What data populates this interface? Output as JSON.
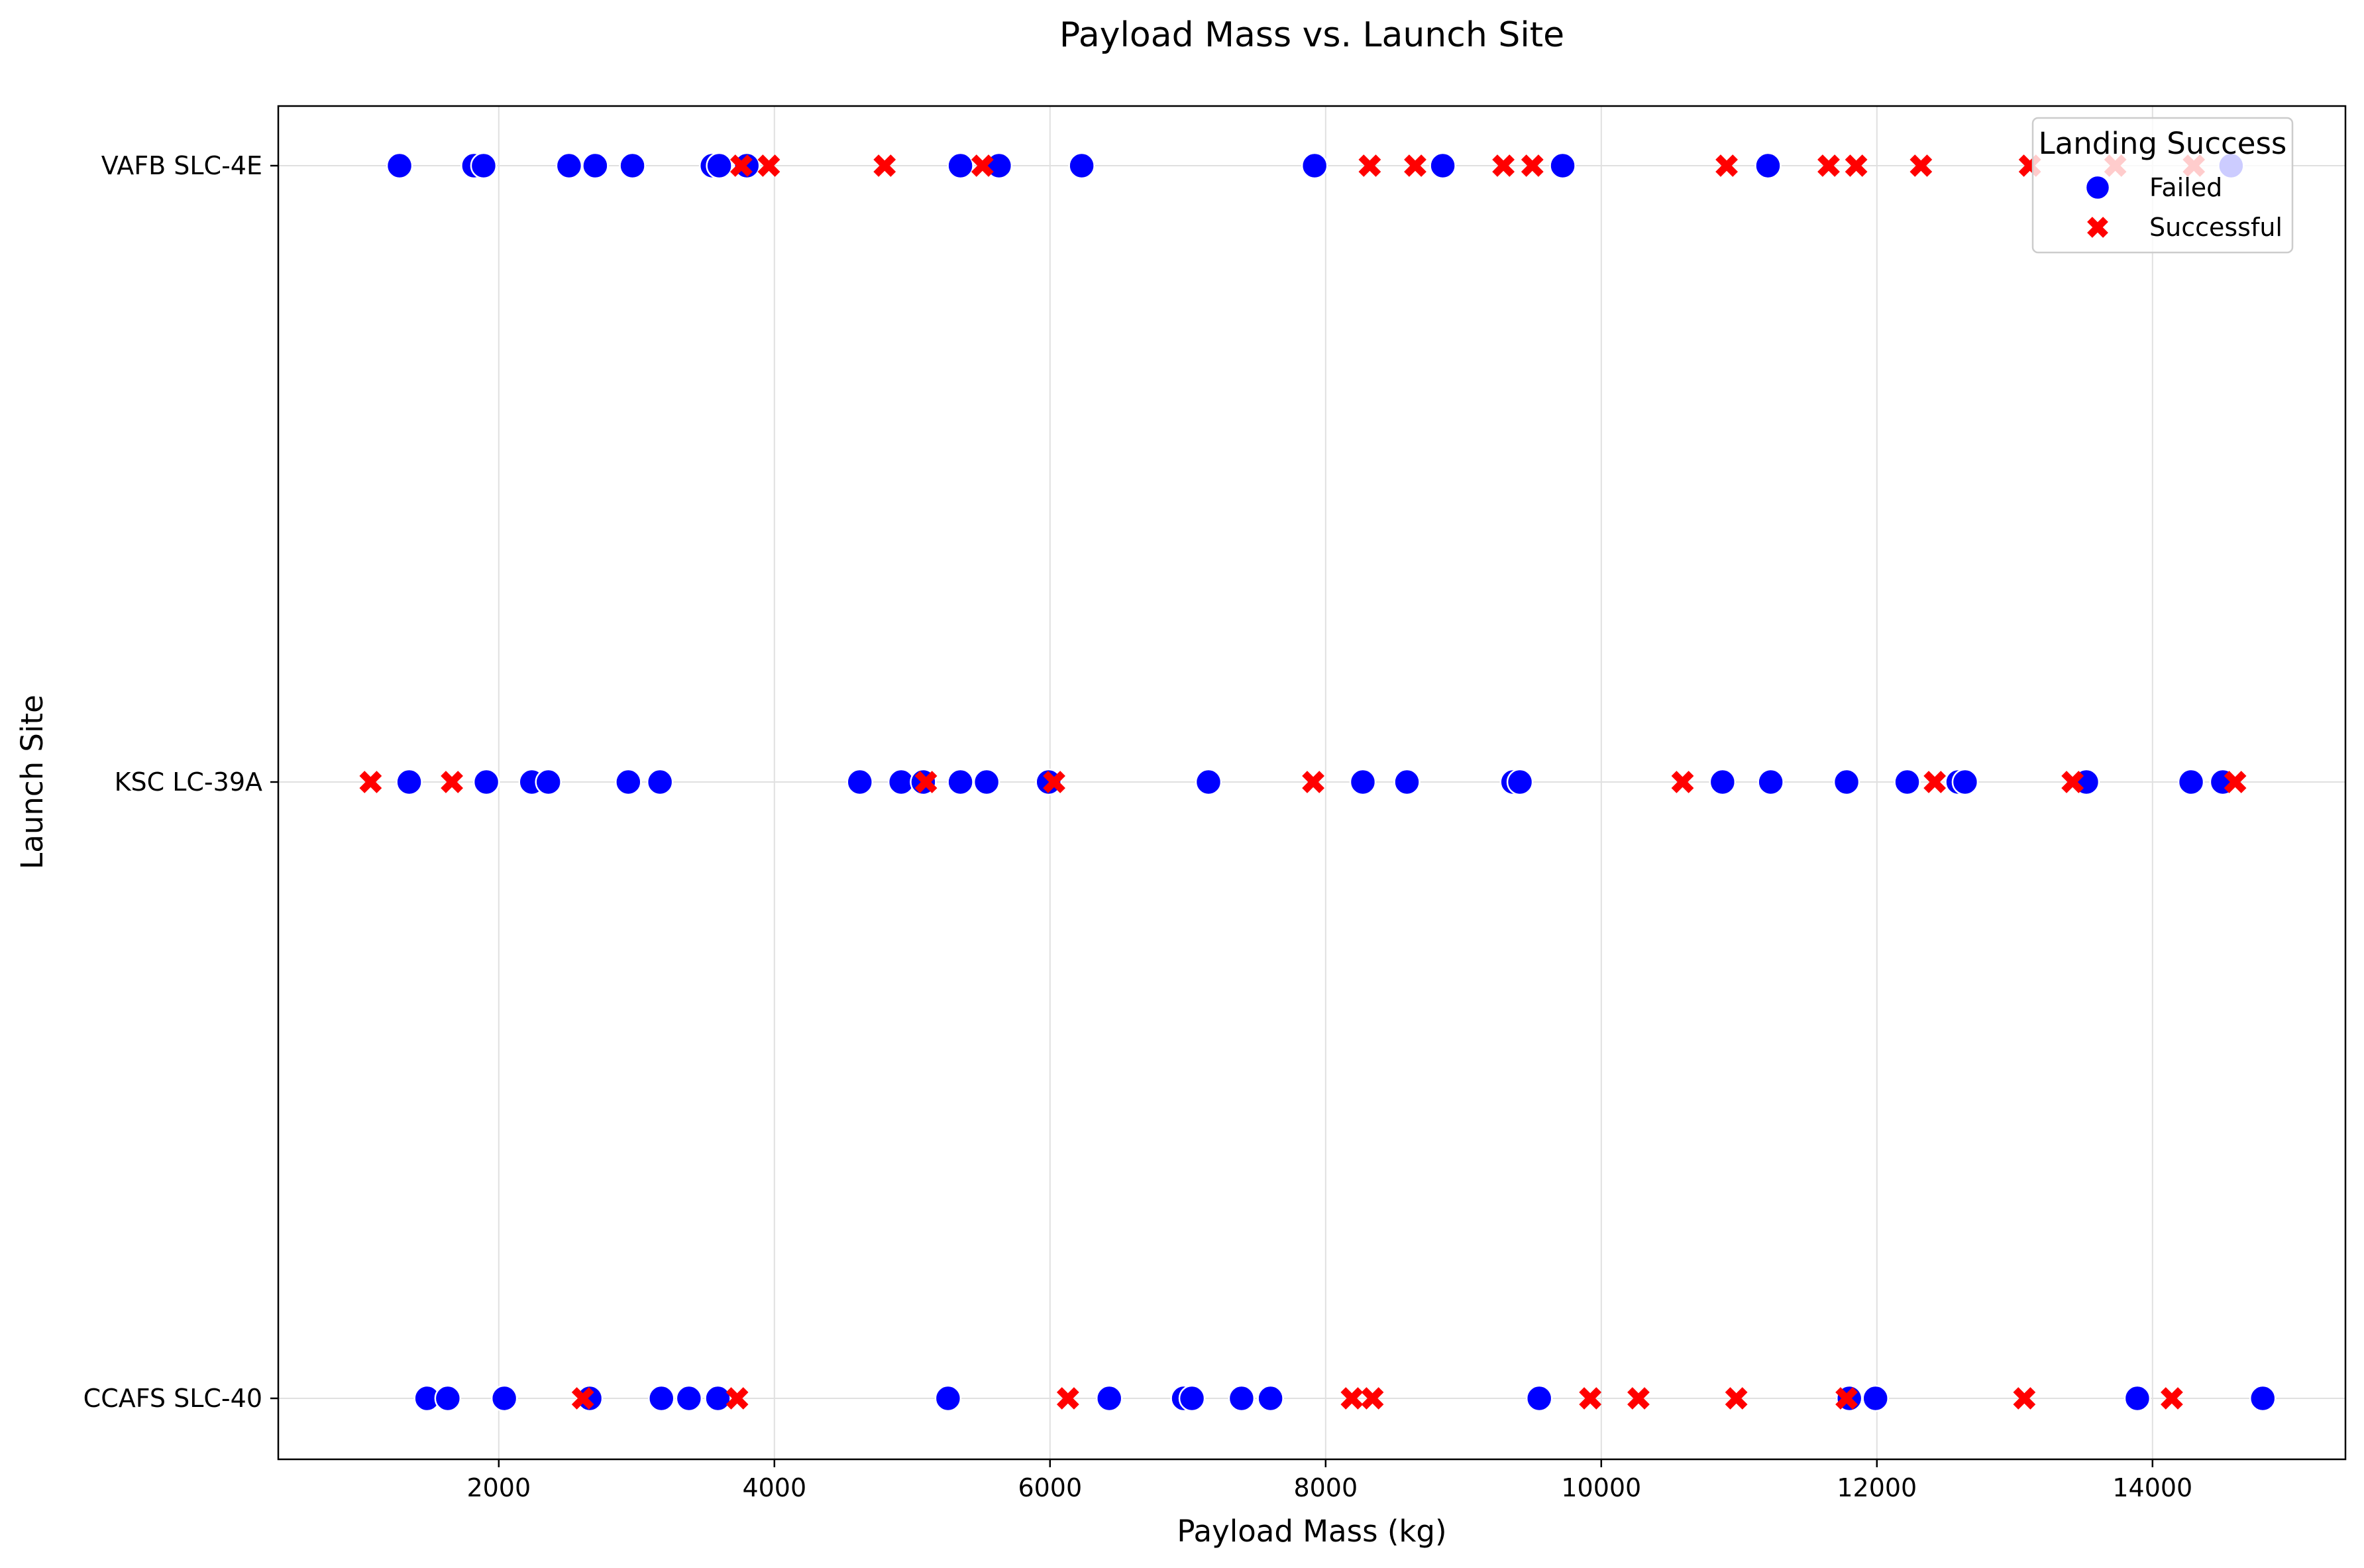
{
  "chart_data": {
    "type": "scatter",
    "title": "Payload Mass vs. Launch Site",
    "xlabel": "Payload Mass (kg)",
    "ylabel": "Launch Site",
    "xlim": [
      400,
      15400
    ],
    "x_ticks": [
      2000,
      4000,
      6000,
      8000,
      10000,
      12000,
      14000
    ],
    "categories": [
      "CCAFS SLC-40",
      "KSC LC-39A",
      "VAFB SLC-4E"
    ],
    "grid": true,
    "legend": {
      "title": "Landing Success",
      "placement": "top-right"
    },
    "series": [
      {
        "name": "Failed",
        "marker": "circle",
        "color": "#0000ff",
        "points": [
          {
            "x": 1280,
            "site": "VAFB SLC-4E"
          },
          {
            "x": 1820,
            "site": "VAFB SLC-4E"
          },
          {
            "x": 1890,
            "site": "VAFB SLC-4E"
          },
          {
            "x": 2510,
            "site": "VAFB SLC-4E"
          },
          {
            "x": 2700,
            "site": "VAFB SLC-4E"
          },
          {
            "x": 2970,
            "site": "VAFB SLC-4E"
          },
          {
            "x": 3550,
            "site": "VAFB SLC-4E"
          },
          {
            "x": 3600,
            "site": "VAFB SLC-4E"
          },
          {
            "x": 3800,
            "site": "VAFB SLC-4E"
          },
          {
            "x": 5350,
            "site": "VAFB SLC-4E"
          },
          {
            "x": 5630,
            "site": "VAFB SLC-4E"
          },
          {
            "x": 6230,
            "site": "VAFB SLC-4E"
          },
          {
            "x": 7920,
            "site": "VAFB SLC-4E"
          },
          {
            "x": 8850,
            "site": "VAFB SLC-4E"
          },
          {
            "x": 9720,
            "site": "VAFB SLC-4E"
          },
          {
            "x": 11210,
            "site": "VAFB SLC-4E"
          },
          {
            "x": 14570,
            "site": "VAFB SLC-4E"
          },
          {
            "x": 1350,
            "site": "KSC LC-39A"
          },
          {
            "x": 1910,
            "site": "KSC LC-39A"
          },
          {
            "x": 2240,
            "site": "KSC LC-39A"
          },
          {
            "x": 2360,
            "site": "KSC LC-39A"
          },
          {
            "x": 2940,
            "site": "KSC LC-39A"
          },
          {
            "x": 3170,
            "site": "KSC LC-39A"
          },
          {
            "x": 4620,
            "site": "KSC LC-39A"
          },
          {
            "x": 4920,
            "site": "KSC LC-39A"
          },
          {
            "x": 5080,
            "site": "KSC LC-39A"
          },
          {
            "x": 5350,
            "site": "KSC LC-39A"
          },
          {
            "x": 5540,
            "site": "KSC LC-39A"
          },
          {
            "x": 5990,
            "site": "KSC LC-39A"
          },
          {
            "x": 7150,
            "site": "KSC LC-39A"
          },
          {
            "x": 8270,
            "site": "KSC LC-39A"
          },
          {
            "x": 8590,
            "site": "KSC LC-39A"
          },
          {
            "x": 9360,
            "site": "KSC LC-39A"
          },
          {
            "x": 9410,
            "site": "KSC LC-39A"
          },
          {
            "x": 10880,
            "site": "KSC LC-39A"
          },
          {
            "x": 11230,
            "site": "KSC LC-39A"
          },
          {
            "x": 11780,
            "site": "KSC LC-39A"
          },
          {
            "x": 12220,
            "site": "KSC LC-39A"
          },
          {
            "x": 12590,
            "site": "KSC LC-39A"
          },
          {
            "x": 12640,
            "site": "KSC LC-39A"
          },
          {
            "x": 13520,
            "site": "KSC LC-39A"
          },
          {
            "x": 14280,
            "site": "KSC LC-39A"
          },
          {
            "x": 14510,
            "site": "KSC LC-39A"
          },
          {
            "x": 1480,
            "site": "CCAFS SLC-40"
          },
          {
            "x": 1630,
            "site": "CCAFS SLC-40"
          },
          {
            "x": 2040,
            "site": "CCAFS SLC-40"
          },
          {
            "x": 2660,
            "site": "CCAFS SLC-40"
          },
          {
            "x": 3180,
            "site": "CCAFS SLC-40"
          },
          {
            "x": 3380,
            "site": "CCAFS SLC-40"
          },
          {
            "x": 3590,
            "site": "CCAFS SLC-40"
          },
          {
            "x": 5260,
            "site": "CCAFS SLC-40"
          },
          {
            "x": 6430,
            "site": "CCAFS SLC-40"
          },
          {
            "x": 6970,
            "site": "CCAFS SLC-40"
          },
          {
            "x": 7030,
            "site": "CCAFS SLC-40"
          },
          {
            "x": 7390,
            "site": "CCAFS SLC-40"
          },
          {
            "x": 7600,
            "site": "CCAFS SLC-40"
          },
          {
            "x": 9550,
            "site": "CCAFS SLC-40"
          },
          {
            "x": 11800,
            "site": "CCAFS SLC-40"
          },
          {
            "x": 11990,
            "site": "CCAFS SLC-40"
          },
          {
            "x": 13890,
            "site": "CCAFS SLC-40"
          },
          {
            "x": 14800,
            "site": "CCAFS SLC-40"
          }
        ]
      },
      {
        "name": "Successful",
        "marker": "x",
        "color": "#ff0000",
        "points": [
          {
            "x": 3760,
            "site": "VAFB SLC-4E"
          },
          {
            "x": 3960,
            "site": "VAFB SLC-4E"
          },
          {
            "x": 4800,
            "site": "VAFB SLC-4E"
          },
          {
            "x": 5510,
            "site": "VAFB SLC-4E"
          },
          {
            "x": 8320,
            "site": "VAFB SLC-4E"
          },
          {
            "x": 8650,
            "site": "VAFB SLC-4E"
          },
          {
            "x": 9290,
            "site": "VAFB SLC-4E"
          },
          {
            "x": 9500,
            "site": "VAFB SLC-4E"
          },
          {
            "x": 10910,
            "site": "VAFB SLC-4E"
          },
          {
            "x": 11650,
            "site": "VAFB SLC-4E"
          },
          {
            "x": 11850,
            "site": "VAFB SLC-4E"
          },
          {
            "x": 12320,
            "site": "VAFB SLC-4E"
          },
          {
            "x": 13110,
            "site": "VAFB SLC-4E"
          },
          {
            "x": 13730,
            "site": "VAFB SLC-4E"
          },
          {
            "x": 14300,
            "site": "VAFB SLC-4E"
          },
          {
            "x": 1070,
            "site": "KSC LC-39A"
          },
          {
            "x": 1660,
            "site": "KSC LC-39A"
          },
          {
            "x": 5100,
            "site": "KSC LC-39A"
          },
          {
            "x": 6030,
            "site": "KSC LC-39A"
          },
          {
            "x": 7910,
            "site": "KSC LC-39A"
          },
          {
            "x": 10590,
            "site": "KSC LC-39A"
          },
          {
            "x": 12420,
            "site": "KSC LC-39A"
          },
          {
            "x": 13420,
            "site": "KSC LC-39A"
          },
          {
            "x": 14600,
            "site": "KSC LC-39A"
          },
          {
            "x": 2610,
            "site": "CCAFS SLC-40"
          },
          {
            "x": 3730,
            "site": "CCAFS SLC-40"
          },
          {
            "x": 6130,
            "site": "CCAFS SLC-40"
          },
          {
            "x": 8190,
            "site": "CCAFS SLC-40"
          },
          {
            "x": 8340,
            "site": "CCAFS SLC-40"
          },
          {
            "x": 9920,
            "site": "CCAFS SLC-40"
          },
          {
            "x": 10270,
            "site": "CCAFS SLC-40"
          },
          {
            "x": 10980,
            "site": "CCAFS SLC-40"
          },
          {
            "x": 11780,
            "site": "CCAFS SLC-40"
          },
          {
            "x": 13070,
            "site": "CCAFS SLC-40"
          },
          {
            "x": 14140,
            "site": "CCAFS SLC-40"
          }
        ]
      }
    ]
  }
}
